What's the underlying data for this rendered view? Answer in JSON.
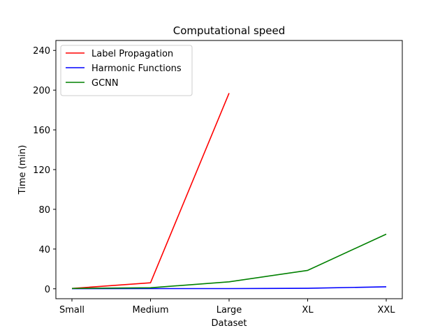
{
  "chart_data": {
    "type": "line",
    "title": "Computational speed",
    "xlabel": "Dataset",
    "ylabel": "Time (min)",
    "categories": [
      "Small",
      "Medium",
      "Large",
      "XL",
      "XXL"
    ],
    "ylim": [
      -10,
      250
    ],
    "yticks": [
      0,
      40,
      80,
      120,
      160,
      200,
      240
    ],
    "grid": false,
    "legend_position": "top-left",
    "series": [
      {
        "name": "Label Propagation",
        "color": "#ff0000",
        "values": [
          0.3,
          6,
          197,
          null,
          null
        ]
      },
      {
        "name": "Harmonic Functions",
        "color": "#0000ff",
        "values": [
          0.1,
          0.2,
          0.2,
          0.5,
          2
        ]
      },
      {
        "name": "GCNN",
        "color": "#008000",
        "values": [
          0.3,
          1,
          7,
          18.5,
          55
        ]
      }
    ]
  }
}
